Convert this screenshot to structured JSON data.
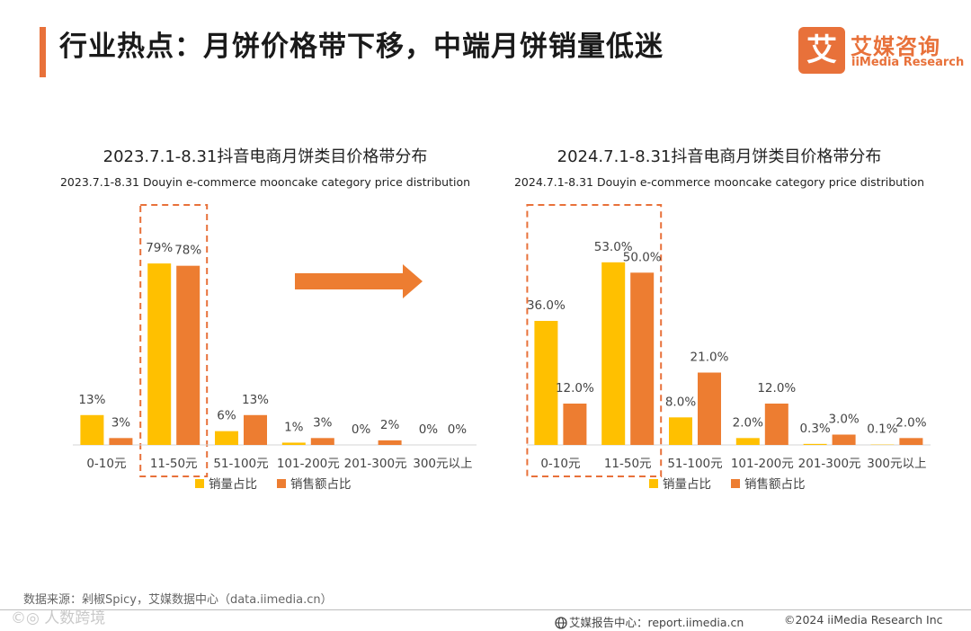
{
  "header": {
    "title": "行业热点：月饼价格带下移，中端月饼销量低迷",
    "logo_mark": "艾",
    "logo_cn": "艾媒咨询",
    "logo_en": "iiMedia Research"
  },
  "colors": {
    "accent": "#e8713a",
    "series_volume": "#ffc000",
    "series_sales": "#ed7d31",
    "highlight_box": "#e8713a"
  },
  "chart_data": [
    {
      "type": "bar",
      "title": "2023.7.1-8.31抖音电商月饼类目价格带分布",
      "subtitle": "2023.7.1-8.31 Douyin e-commerce mooncake category price distribution",
      "categories": [
        "0-10元",
        "11-50元",
        "51-100元",
        "101-200元",
        "201-300元",
        "300元以上"
      ],
      "series": [
        {
          "name": "销量占比",
          "values": [
            13,
            79,
            6,
            1,
            0,
            0
          ],
          "labels": [
            "13%",
            "79%",
            "6%",
            "1%",
            "0%",
            "0%"
          ]
        },
        {
          "name": "销售额占比",
          "values": [
            3,
            78,
            13,
            3,
            2,
            0
          ],
          "labels": [
            "3%",
            "78%",
            "13%",
            "3%",
            "2%",
            "0%"
          ]
        }
      ],
      "ylim": [
        0,
        90
      ],
      "grid": false,
      "legend": "bottom-center",
      "highlight_categories": [
        1
      ]
    },
    {
      "type": "bar",
      "title": "2024.7.1-8.31抖音电商月饼类目价格带分布",
      "subtitle": "2024.7.1-8.31 Douyin e-commerce mooncake category price distribution",
      "categories": [
        "0-10元",
        "11-50元",
        "51-100元",
        "101-200元",
        "201-300元",
        "300元以上"
      ],
      "series": [
        {
          "name": "销量占比",
          "values": [
            36.0,
            53.0,
            8.0,
            2.0,
            0.3,
            0.1
          ],
          "labels": [
            "36.0%",
            "53.0%",
            "8.0%",
            "2.0%",
            "0.3%",
            "0.1%"
          ]
        },
        {
          "name": "销售额占比",
          "values": [
            12.0,
            50.0,
            21.0,
            12.0,
            3.0,
            2.0
          ],
          "labels": [
            "12.0%",
            "50.0%",
            "21.0%",
            "12.0%",
            "3.0%",
            "2.0%"
          ]
        }
      ],
      "ylim": [
        0,
        60
      ],
      "grid": false,
      "legend": "bottom-center",
      "highlight_categories": [
        0,
        1
      ]
    }
  ],
  "footer": {
    "source": "数据来源：剁椒Spicy，艾媒数据中心（data.iimedia.cn）",
    "watermark": "©◎ 人数跨境",
    "report_center": "艾媒报告中心：report.iimedia.cn",
    "copyright": "©2024  iiMedia Research  Inc"
  }
}
